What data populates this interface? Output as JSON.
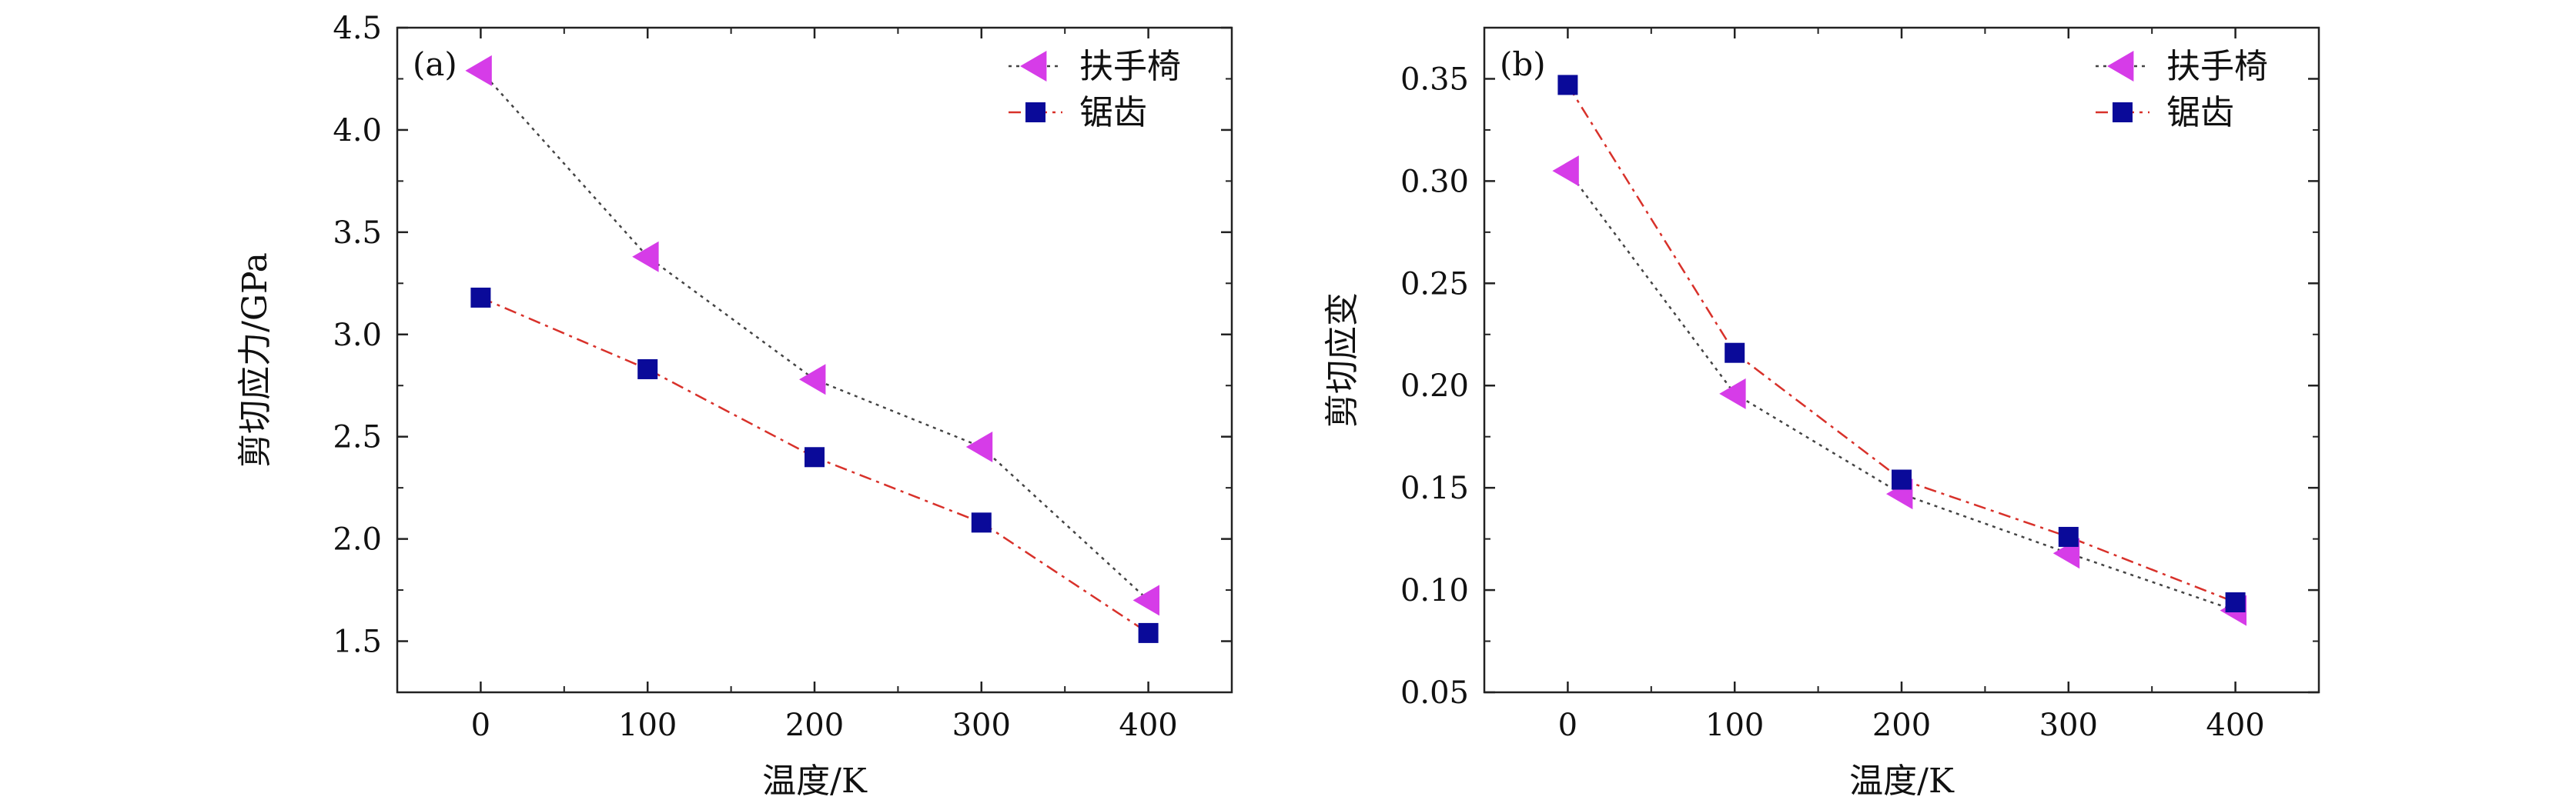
{
  "chart_data": [
    {
      "type": "line",
      "panel_label": "(a)",
      "xlabel": "温度/K",
      "ylabel": "剪切应力/GPa",
      "xlim": [
        -50,
        450
      ],
      "ylim": [
        1.25,
        4.5
      ],
      "xticks": [
        0,
        100,
        200,
        300,
        400
      ],
      "yticks": [
        1.5,
        2.0,
        2.5,
        3.0,
        3.5,
        4.0,
        4.5
      ],
      "xtick_labels": [
        "0",
        "100",
        "200",
        "300",
        "400"
      ],
      "ytick_labels": [
        "1.5",
        "2.0",
        "2.5",
        "3.0",
        "3.5",
        "4.0",
        "4.5"
      ],
      "legend_position": "top-right",
      "grid": false,
      "series": [
        {
          "name": "扶手椅",
          "marker": "triangle-left",
          "color": "#d63ce8",
          "line_color": "#444444",
          "line_style": "dotted",
          "x": [
            0,
            100,
            200,
            300,
            400
          ],
          "y": [
            4.29,
            3.38,
            2.78,
            2.45,
            1.7
          ]
        },
        {
          "name": "锯齿",
          "marker": "square",
          "color": "#0a0a99",
          "line_color": "#d8312a",
          "line_style": "dashdot",
          "x": [
            0,
            100,
            200,
            300,
            400
          ],
          "y": [
            3.18,
            2.83,
            2.4,
            2.08,
            1.54
          ]
        }
      ]
    },
    {
      "type": "line",
      "panel_label": "(b)",
      "xlabel": "温度/K",
      "ylabel": "剪切应变",
      "xlim": [
        -50,
        450
      ],
      "ylim": [
        0.05,
        0.375
      ],
      "xticks": [
        0,
        100,
        200,
        300,
        400
      ],
      "yticks": [
        0.05,
        0.1,
        0.15,
        0.2,
        0.25,
        0.3,
        0.35
      ],
      "xtick_labels": [
        "0",
        "100",
        "200",
        "300",
        "400"
      ],
      "ytick_labels": [
        "0.05",
        "0.10",
        "0.15",
        "0.20",
        "0.25",
        "0.30",
        "0.35"
      ],
      "legend_position": "top-right",
      "grid": false,
      "series": [
        {
          "name": "扶手椅",
          "marker": "triangle-left",
          "color": "#d63ce8",
          "line_color": "#444444",
          "line_style": "dotted",
          "x": [
            0,
            100,
            200,
            300,
            400
          ],
          "y": [
            0.305,
            0.196,
            0.147,
            0.118,
            0.09
          ]
        },
        {
          "name": "锯齿",
          "marker": "square",
          "color": "#0a0a99",
          "line_color": "#d8312a",
          "line_style": "dashdot",
          "x": [
            0,
            100,
            200,
            300,
            400
          ],
          "y": [
            0.347,
            0.216,
            0.154,
            0.126,
            0.094
          ]
        }
      ]
    }
  ]
}
